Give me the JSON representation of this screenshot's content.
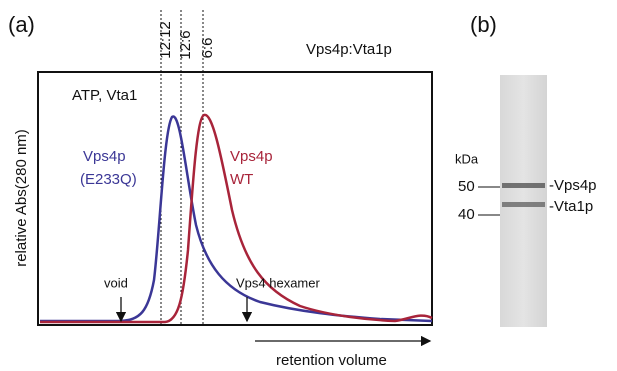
{
  "panel_a": {
    "label": "(a)",
    "title": "Vps4p:Vta1p",
    "ratio_labels": [
      "12:12",
      "12:6",
      "6:6"
    ],
    "condition": "ATP, Vta1",
    "blue_label": [
      "Vps4p",
      "(E233Q)"
    ],
    "red_label": [
      "Vps4p",
      "WT"
    ],
    "y_axis_label": "relative Abs(280 nm)",
    "annotations": [
      "void",
      "Vps4 hexamer"
    ],
    "x_axis_label": "retention volume"
  },
  "panel_b": {
    "label": "(b)",
    "unit": "kDa",
    "markers": [
      "50",
      "40"
    ],
    "bands": [
      "-Vps4p",
      "-Vta1p"
    ]
  }
}
